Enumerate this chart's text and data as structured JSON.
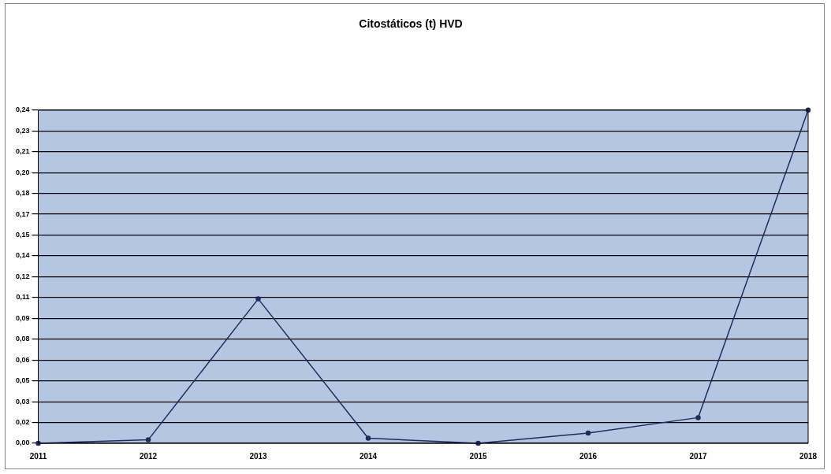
{
  "chart_data": {
    "type": "line",
    "title": "Citostáticos (t) HVD",
    "categories": [
      "2011",
      "2012",
      "2013",
      "2014",
      "2015",
      "2016",
      "2017",
      "2018"
    ],
    "series": [
      {
        "color": "#1f2d5c",
        "values": [
          0,
          0.0025,
          0.104,
          0.0037,
          0,
          0.0074,
          0.0185,
          0.24
        ]
      }
    ],
    "ylim": [
      0,
      0.24
    ],
    "yticks": [
      {
        "value": 0,
        "label": "0,00"
      },
      {
        "value": 0.015,
        "label": "0,02"
      },
      {
        "value": 0.03,
        "label": "0,03"
      },
      {
        "value": 0.045,
        "label": "0,05"
      },
      {
        "value": 0.06,
        "label": "0,06"
      },
      {
        "value": 0.075,
        "label": "0,08"
      },
      {
        "value": 0.09,
        "label": "0,09"
      },
      {
        "value": 0.105,
        "label": "0,11"
      },
      {
        "value": 0.12,
        "label": "0,12"
      },
      {
        "value": 0.135,
        "label": "0,14"
      },
      {
        "value": 0.15,
        "label": "0,15"
      },
      {
        "value": 0.165,
        "label": "0,17"
      },
      {
        "value": 0.18,
        "label": "0,18"
      },
      {
        "value": 0.195,
        "label": "0,20"
      },
      {
        "value": 0.21,
        "label": "0,21"
      },
      {
        "value": 0.225,
        "label": "0,23"
      },
      {
        "value": 0.24,
        "label": "0,24"
      }
    ],
    "grid": "y",
    "marker": "circle",
    "line_style": "solid",
    "legend": false
  }
}
